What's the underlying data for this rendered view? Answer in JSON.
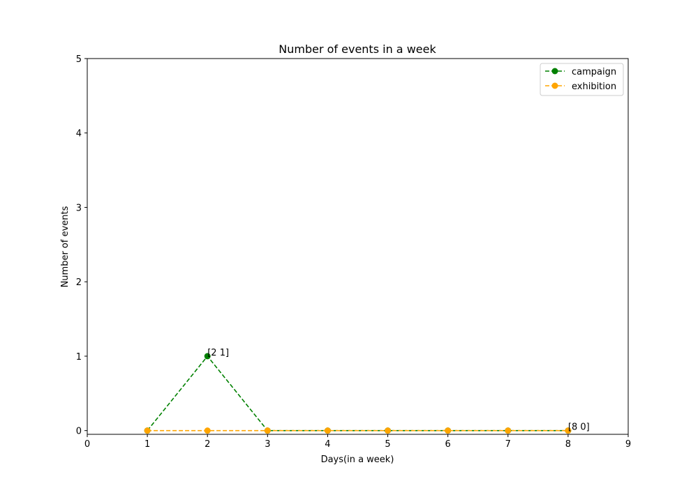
{
  "chart_data": {
    "type": "line",
    "title": "Number of events in a week",
    "xlabel": "Days(in a week)",
    "ylabel": "Number of events",
    "xlim": [
      0,
      9
    ],
    "ylim": [
      -0.05,
      5
    ],
    "xticks": [
      0,
      1,
      2,
      3,
      4,
      5,
      6,
      7,
      8,
      9
    ],
    "yticks": [
      0,
      1,
      2,
      3,
      4,
      5
    ],
    "grid": false,
    "legend_position": "top-right",
    "series": [
      {
        "name": "campaign",
        "color": "#008000",
        "x": [
          1,
          2,
          3,
          4,
          5,
          6,
          7,
          8
        ],
        "y": [
          0,
          1,
          0,
          0,
          0,
          0,
          0,
          0
        ]
      },
      {
        "name": "exhibition",
        "color": "#FFA500",
        "x": [
          1,
          2,
          3,
          4,
          5,
          6,
          7,
          8
        ],
        "y": [
          0,
          0,
          0,
          0,
          0,
          0,
          0,
          0
        ]
      }
    ],
    "annotations": [
      {
        "text": "[2 1]",
        "x": 2,
        "y": 1
      },
      {
        "text": "[8 0]",
        "x": 8,
        "y": 0
      }
    ]
  }
}
